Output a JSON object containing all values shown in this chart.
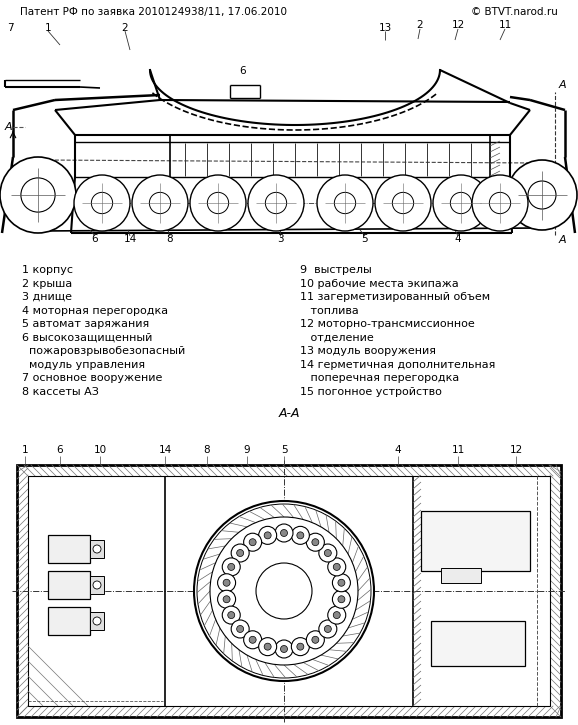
{
  "title_left": "Патент РФ по заявка 2010124938/11, 17.06.2010",
  "title_right": "© BTVT.narod.ru",
  "legend_left": [
    "1 корпус",
    "2 крыша",
    "3 днище",
    "4 моторная перегородка",
    "5 автомат заряжания",
    "6 высокозащищенный",
    "  пожаровзрывобезопасный",
    "  модуль управления",
    "7 основное вооружение",
    "8 кассеты АЗ"
  ],
  "legend_right": [
    "9  выстрелы",
    "10 рабочие места экипажа",
    "11 загерметизированный объем",
    "   топлива",
    "12 моторно-трансмиссионное",
    "   отделение",
    "13 модуль вооружения",
    "14 герметичная дополнительная",
    "   поперечная перегородка",
    "15 погонное устройство"
  ],
  "section_label": "А-А",
  "bg_color": "#ffffff",
  "lc": "#000000"
}
